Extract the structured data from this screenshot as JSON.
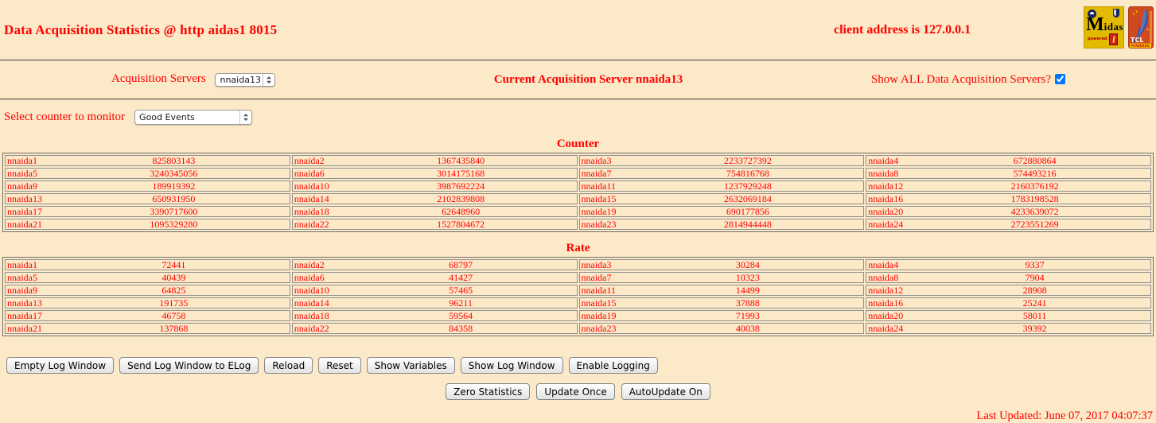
{
  "page": {
    "title": "Data Acquisition Statistics @ http aidas1 8015",
    "client_address": "client address is 127.0.0.1",
    "last_updated": "Last Updated: June 07, 2017 04:07:37",
    "background_color": "#FCE9C8",
    "text_color": "#FF0000"
  },
  "logos": {
    "midas": {
      "word_initial": "M",
      "word_rest": "idas",
      "powered_by": "powered by"
    },
    "tcl": {
      "line1": "TCL",
      "line2": "POWERED"
    }
  },
  "controls": {
    "acquisition_servers_label": "Acquisition Servers",
    "acquisition_server_selected": "nnaida13",
    "current_server_text": "Current Acquisition Server nnaida13",
    "show_all_label": "Show ALL Data Acquisition Servers?",
    "show_all_checked": true,
    "counter_select_label": "Select counter to monitor",
    "counter_selected": "Good Events"
  },
  "counter_table": {
    "title": "Counter",
    "rows": [
      [
        [
          "nnaida1",
          "825803143"
        ],
        [
          "nnaida2",
          "1367435840"
        ],
        [
          "nnaida3",
          "2233727392"
        ],
        [
          "nnaida4",
          "672880864"
        ]
      ],
      [
        [
          "nnaida5",
          "3240345056"
        ],
        [
          "nnaida6",
          "3014175168"
        ],
        [
          "nnaida7",
          "754816768"
        ],
        [
          "nnaida8",
          "574493216"
        ]
      ],
      [
        [
          "nnaida9",
          "189919392"
        ],
        [
          "nnaida10",
          "3987692224"
        ],
        [
          "nnaida11",
          "1237929248"
        ],
        [
          "nnaida12",
          "2160376192"
        ]
      ],
      [
        [
          "nnaida13",
          "650931950"
        ],
        [
          "nnaida14",
          "2102839808"
        ],
        [
          "nnaida15",
          "2632069184"
        ],
        [
          "nnaida16",
          "1783198528"
        ]
      ],
      [
        [
          "nnaida17",
          "3390717600"
        ],
        [
          "nnaida18",
          "62648960"
        ],
        [
          "nnaida19",
          "690177856"
        ],
        [
          "nnaida20",
          "4233639072"
        ]
      ],
      [
        [
          "nnaida21",
          "1095329280"
        ],
        [
          "nnaida22",
          "1527804672"
        ],
        [
          "nnaida23",
          "2814944448"
        ],
        [
          "nnaida24",
          "2723551269"
        ]
      ]
    ]
  },
  "rate_table": {
    "title": "Rate",
    "rows": [
      [
        [
          "nnaida1",
          "72441"
        ],
        [
          "nnaida2",
          "68797"
        ],
        [
          "nnaida3",
          "30284"
        ],
        [
          "nnaida4",
          "9337"
        ]
      ],
      [
        [
          "nnaida5",
          "40439"
        ],
        [
          "nnaida6",
          "41427"
        ],
        [
          "nnaida7",
          "10323"
        ],
        [
          "nnaida8",
          "7904"
        ]
      ],
      [
        [
          "nnaida9",
          "64825"
        ],
        [
          "nnaida10",
          "57465"
        ],
        [
          "nnaida11",
          "14499"
        ],
        [
          "nnaida12",
          "28908"
        ]
      ],
      [
        [
          "nnaida13",
          "191735"
        ],
        [
          "nnaida14",
          "96211"
        ],
        [
          "nnaida15",
          "37888"
        ],
        [
          "nnaida16",
          "25241"
        ]
      ],
      [
        [
          "nnaida17",
          "46758"
        ],
        [
          "nnaida18",
          "59564"
        ],
        [
          "nnaida19",
          "71993"
        ],
        [
          "nnaida20",
          "58011"
        ]
      ],
      [
        [
          "nnaida21",
          "137868"
        ],
        [
          "nnaida22",
          "84358"
        ],
        [
          "nnaida23",
          "40038"
        ],
        [
          "nnaida24",
          "39392"
        ]
      ]
    ]
  },
  "buttons_row1": [
    "Empty Log Window",
    "Send Log Window to ELog",
    "Reload",
    "Reset",
    "Show Variables",
    "Show Log Window",
    "Enable Logging"
  ],
  "buttons_row2": [
    "Zero Statistics",
    "Update Once",
    "AutoUpdate On"
  ]
}
